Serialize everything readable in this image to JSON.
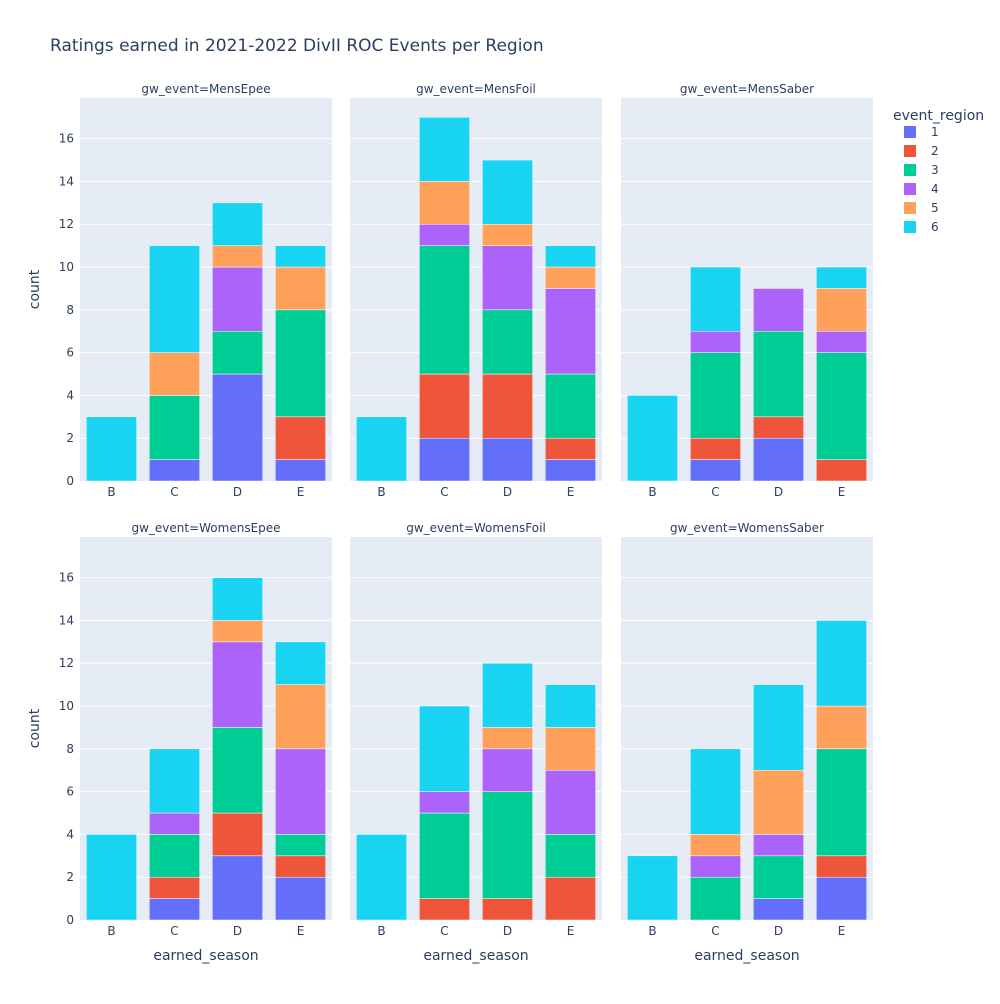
{
  "chart_data": {
    "type": "bar",
    "title": "Ratings earned in 2021-2022 DivII ROC Events per Region",
    "xlabel": "earned_season",
    "ylabel": "count",
    "categories": [
      "B",
      "C",
      "D",
      "E"
    ],
    "ylim": [
      0,
      17.9
    ],
    "y_ticks": [
      0,
      2,
      4,
      6,
      8,
      10,
      12,
      14,
      16
    ],
    "grid": true,
    "barmode": "stack",
    "legend": {
      "title": "event_region",
      "placement": "right",
      "entries": [
        "1",
        "2",
        "3",
        "4",
        "5",
        "6"
      ]
    },
    "colors": [
      "#636EFA",
      "#EF553B",
      "#00CC96",
      "#AB63FA",
      "#FFA15A",
      "#19D3F3"
    ],
    "panels": [
      {
        "label": "gw_event=MensEpee",
        "series": [
          {
            "name": "1",
            "values": [
              0,
              1,
              5,
              1
            ]
          },
          {
            "name": "2",
            "values": [
              0,
              0,
              0,
              2
            ]
          },
          {
            "name": "3",
            "values": [
              0,
              3,
              2,
              5
            ]
          },
          {
            "name": "4",
            "values": [
              0,
              0,
              3,
              0
            ]
          },
          {
            "name": "5",
            "values": [
              0,
              2,
              1,
              2
            ]
          },
          {
            "name": "6",
            "values": [
              3,
              5,
              2,
              1
            ]
          }
        ]
      },
      {
        "label": "gw_event=MensFoil",
        "series": [
          {
            "name": "1",
            "values": [
              0,
              2,
              2,
              1
            ]
          },
          {
            "name": "2",
            "values": [
              0,
              3,
              3,
              1
            ]
          },
          {
            "name": "3",
            "values": [
              0,
              6,
              3,
              3
            ]
          },
          {
            "name": "4",
            "values": [
              0,
              1,
              3,
              4
            ]
          },
          {
            "name": "5",
            "values": [
              0,
              2,
              1,
              1
            ]
          },
          {
            "name": "6",
            "values": [
              3,
              3,
              3,
              1
            ]
          }
        ]
      },
      {
        "label": "gw_event=MensSaber",
        "series": [
          {
            "name": "1",
            "values": [
              0,
              1,
              2,
              0
            ]
          },
          {
            "name": "2",
            "values": [
              0,
              1,
              1,
              1
            ]
          },
          {
            "name": "3",
            "values": [
              0,
              4,
              4,
              5
            ]
          },
          {
            "name": "4",
            "values": [
              0,
              1,
              2,
              1
            ]
          },
          {
            "name": "5",
            "values": [
              0,
              0,
              0,
              2
            ]
          },
          {
            "name": "6",
            "values": [
              4,
              3,
              0,
              1
            ]
          }
        ]
      },
      {
        "label": "gw_event=WomensEpee",
        "series": [
          {
            "name": "1",
            "values": [
              0,
              1,
              3,
              2
            ]
          },
          {
            "name": "2",
            "values": [
              0,
              1,
              2,
              1
            ]
          },
          {
            "name": "3",
            "values": [
              0,
              2,
              4,
              1
            ]
          },
          {
            "name": "4",
            "values": [
              0,
              1,
              4,
              4
            ]
          },
          {
            "name": "5",
            "values": [
              0,
              0,
              1,
              3
            ]
          },
          {
            "name": "6",
            "values": [
              4,
              3,
              2,
              2
            ]
          }
        ]
      },
      {
        "label": "gw_event=WomensFoil",
        "series": [
          {
            "name": "1",
            "values": [
              0,
              0,
              0,
              0
            ]
          },
          {
            "name": "2",
            "values": [
              0,
              1,
              1,
              2
            ]
          },
          {
            "name": "3",
            "values": [
              0,
              4,
              5,
              2
            ]
          },
          {
            "name": "4",
            "values": [
              0,
              1,
              2,
              3
            ]
          },
          {
            "name": "5",
            "values": [
              0,
              0,
              1,
              2
            ]
          },
          {
            "name": "6",
            "values": [
              4,
              4,
              3,
              2
            ]
          }
        ]
      },
      {
        "label": "gw_event=WomensSaber",
        "series": [
          {
            "name": "1",
            "values": [
              0,
              0,
              1,
              2
            ]
          },
          {
            "name": "2",
            "values": [
              0,
              0,
              0,
              1
            ]
          },
          {
            "name": "3",
            "values": [
              0,
              2,
              2,
              5
            ]
          },
          {
            "name": "4",
            "values": [
              0,
              1,
              1,
              0
            ]
          },
          {
            "name": "5",
            "values": [
              0,
              1,
              3,
              2
            ]
          },
          {
            "name": "6",
            "values": [
              3,
              4,
              4,
              4
            ]
          }
        ]
      }
    ]
  }
}
